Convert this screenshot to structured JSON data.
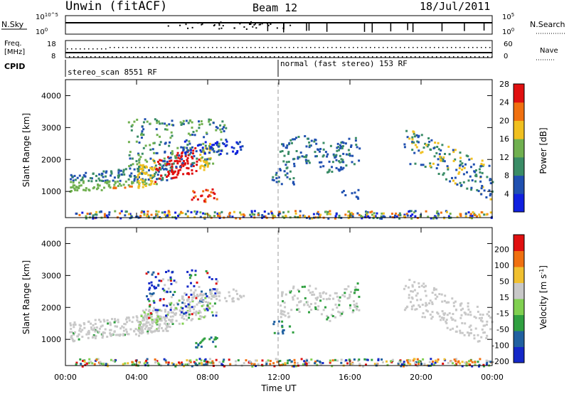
{
  "header": {
    "station": "Unwin (fitACF)",
    "beam": "Beam 12",
    "date": "18/Jul/2011"
  },
  "noise_panel": {
    "left_label": "N.Sky",
    "right_label": "N.Search",
    "ticks": [
      "10^5",
      "10^0"
    ],
    "right_ticks": [
      "10^5",
      "10^0"
    ]
  },
  "freq_panel": {
    "left_label_1": "Freq.",
    "left_label_2": "[MHz]",
    "left_ticks": [
      "18",
      "8"
    ],
    "right_label": "Nave",
    "right_ticks": [
      "60",
      "0"
    ]
  },
  "cpid_panel": {
    "label": "CPID",
    "segments": [
      {
        "text": "stereo_scan 8551 RF",
        "start_hour": 0
      },
      {
        "text": "normal (fast stereo) 153 RF",
        "start_hour": 12
      }
    ]
  },
  "chart_data": [
    {
      "type": "heatmap",
      "name": "power",
      "ylabel": "Slant Range [km]",
      "xlabel": "Time UT",
      "xlim_hours": [
        0,
        24
      ],
      "ylim": [
        180,
        4500
      ],
      "yticks": [
        "1000",
        "2000",
        "3000",
        "4000"
      ],
      "xticks": [
        "00:00",
        "04:00",
        "08:00",
        "12:00",
        "16:00",
        "20:00",
        "00:00"
      ],
      "colorbar": {
        "label": "Power [dB]",
        "ticks": [
          "4",
          "8",
          "12",
          "16",
          "20",
          "24",
          "28"
        ],
        "colors": [
          "#1020e0",
          "#2050b0",
          "#3a8c66",
          "#70b050",
          "#f0c020",
          "#f07010",
          "#e01010"
        ]
      }
    },
    {
      "type": "heatmap",
      "name": "velocity",
      "ylabel": "Slant Range [km]",
      "xlabel": "Time UT",
      "xlim_hours": [
        0,
        24
      ],
      "ylim": [
        180,
        4500
      ],
      "yticks": [
        "1000",
        "2000",
        "3000",
        "4000"
      ],
      "xticks": [
        "00:00",
        "04:00",
        "08:00",
        "12:00",
        "16:00",
        "20:00",
        "00:00"
      ],
      "colorbar": {
        "label": "Velocity [m s^-1]",
        "ticks": [
          "200",
          "100",
          "50",
          "15",
          "-15",
          "-50",
          "-100",
          "-200"
        ],
        "colors": [
          "#1428c8",
          "#2060a0",
          "#30a040",
          "#80d050",
          "#c8c8c8",
          "#f0c030",
          "#f07010",
          "#e01010"
        ]
      }
    }
  ],
  "x_axis_title": "Time UT"
}
